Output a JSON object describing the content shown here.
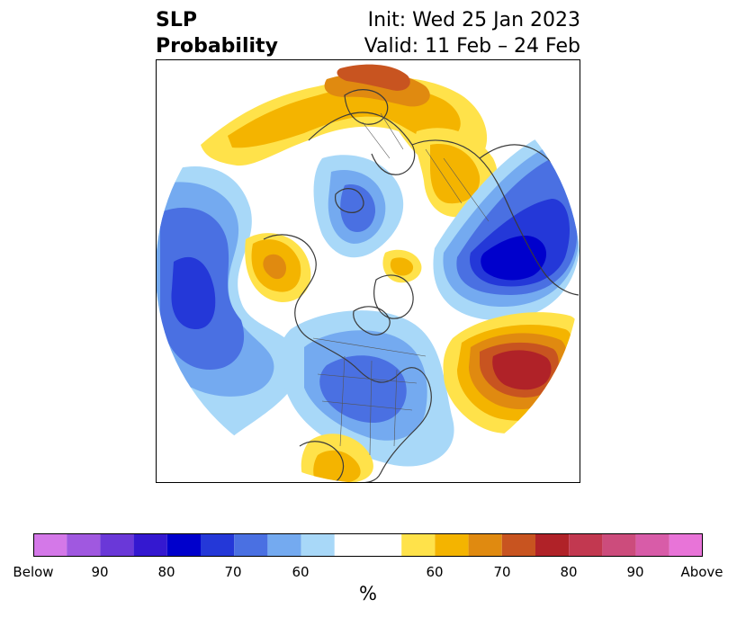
{
  "header": {
    "title_line1": "SLP",
    "title_line2": "Probability",
    "init_label": "Init: Wed 25 Jan 2023",
    "valid_label": "Valid: 11 Feb – 24 Feb"
  },
  "colorbar": {
    "unit": "%",
    "tick_labels": [
      "Below",
      "90",
      "80",
      "70",
      "60",
      "60",
      "70",
      "80",
      "90",
      "Above"
    ],
    "colors": [
      "#d478e8",
      "#a058e0",
      "#6a38d8",
      "#3418d0",
      "#0000cc",
      "#2438d8",
      "#4a70e2",
      "#74aaf0",
      "#a8d8f8",
      "#ffffff",
      "#ffe24a",
      "#f4b400",
      "#e08a10",
      "#c85420",
      "#b02228",
      "#c23850",
      "#cc4c7c",
      "#d85ca8",
      "#e874d8"
    ]
  },
  "map": {
    "projection": "north-polar-stereographic",
    "features": [
      "coastlines",
      "country-borders",
      "us-state-borders",
      "probability-shading"
    ]
  }
}
